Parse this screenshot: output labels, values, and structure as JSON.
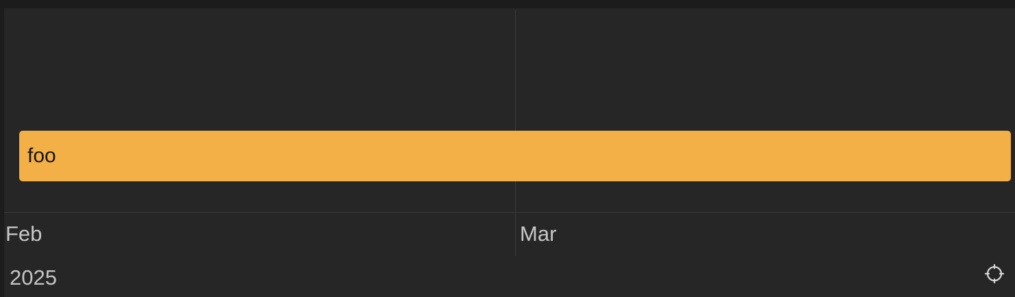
{
  "timeline": {
    "events": [
      {
        "label": "foo",
        "color": "#F3B047"
      }
    ],
    "months": [
      {
        "label": "Feb"
      },
      {
        "label": "Mar"
      }
    ],
    "year": "2025"
  },
  "controls": {
    "recenter_icon": "crosshair-icon"
  }
}
